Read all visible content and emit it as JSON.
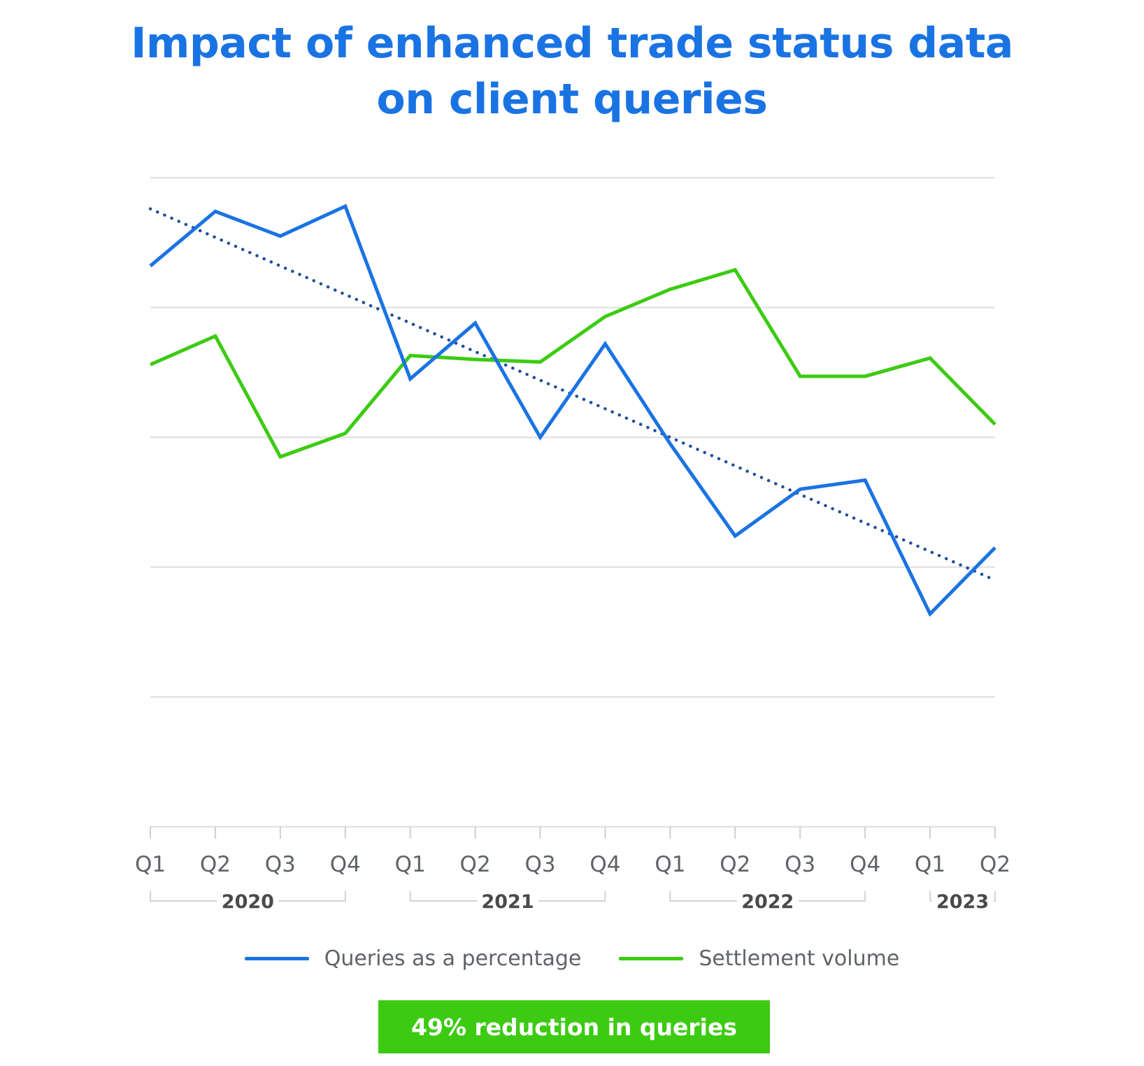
{
  "title": {
    "line1": "Impact of enhanced trade status data",
    "line2": "on client queries"
  },
  "banner": "49% reduction in queries",
  "colors": {
    "title": "#1a73e3",
    "queries": "#1a73e3",
    "settlement": "#3ccb12",
    "trend": "#1f4e9c",
    "grid": "#e3e3e3",
    "banner": "#3ccb12"
  },
  "chart_data": {
    "type": "line",
    "categories": [
      "Q1",
      "Q2",
      "Q3",
      "Q4",
      "Q1",
      "Q2",
      "Q3",
      "Q4",
      "Q1",
      "Q2",
      "Q3",
      "Q4",
      "Q1",
      "Q2"
    ],
    "years": [
      {
        "label": "2020",
        "start": 0,
        "end": 3
      },
      {
        "label": "2021",
        "start": 4,
        "end": 7
      },
      {
        "label": "2022",
        "start": 8,
        "end": 11
      },
      {
        "label": "2023",
        "start": 12,
        "end": 13
      }
    ],
    "ylim": [
      0,
      5
    ],
    "grid": true,
    "legend_position": "bottom",
    "series": [
      {
        "name": "Queries as a percentage",
        "color": "#1a73e3",
        "values": [
          4.32,
          4.74,
          4.55,
          4.78,
          3.45,
          3.88,
          3.0,
          3.72,
          2.95,
          2.24,
          2.6,
          2.67,
          1.64,
          2.15
        ]
      },
      {
        "name": "Settlement volume",
        "color": "#3ccb12",
        "values": [
          3.56,
          3.78,
          2.85,
          3.03,
          3.63,
          3.6,
          3.58,
          3.93,
          4.14,
          4.29,
          3.47,
          3.47,
          3.61,
          3.1
        ]
      }
    ],
    "trendline": {
      "series": "Queries as a percentage",
      "style": "dotted",
      "start": 4.76,
      "end": 1.9
    }
  }
}
